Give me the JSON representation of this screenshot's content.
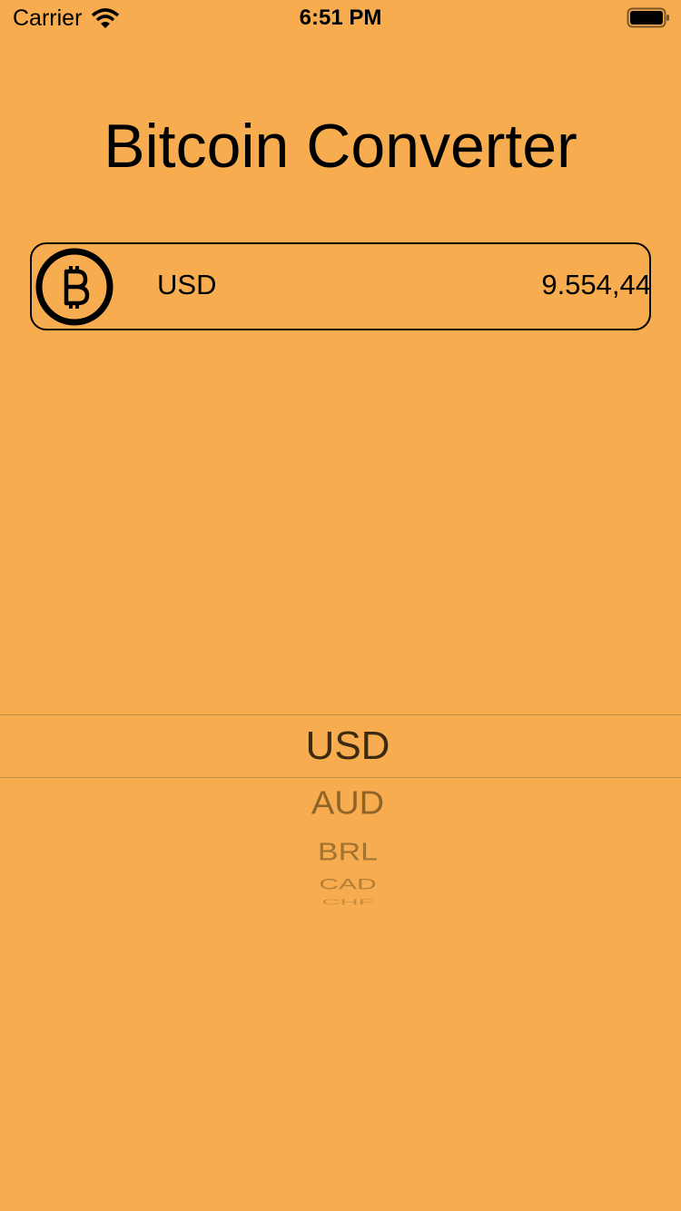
{
  "status_bar": {
    "carrier": "Carrier",
    "time": "6:51 PM"
  },
  "header": {
    "title": "Bitcoin Converter"
  },
  "rate_card": {
    "currency": "USD",
    "value": "9.554,44"
  },
  "picker": {
    "selected": "USD",
    "items": [
      "AUD",
      "BRL",
      "CAD",
      "CHF"
    ]
  }
}
